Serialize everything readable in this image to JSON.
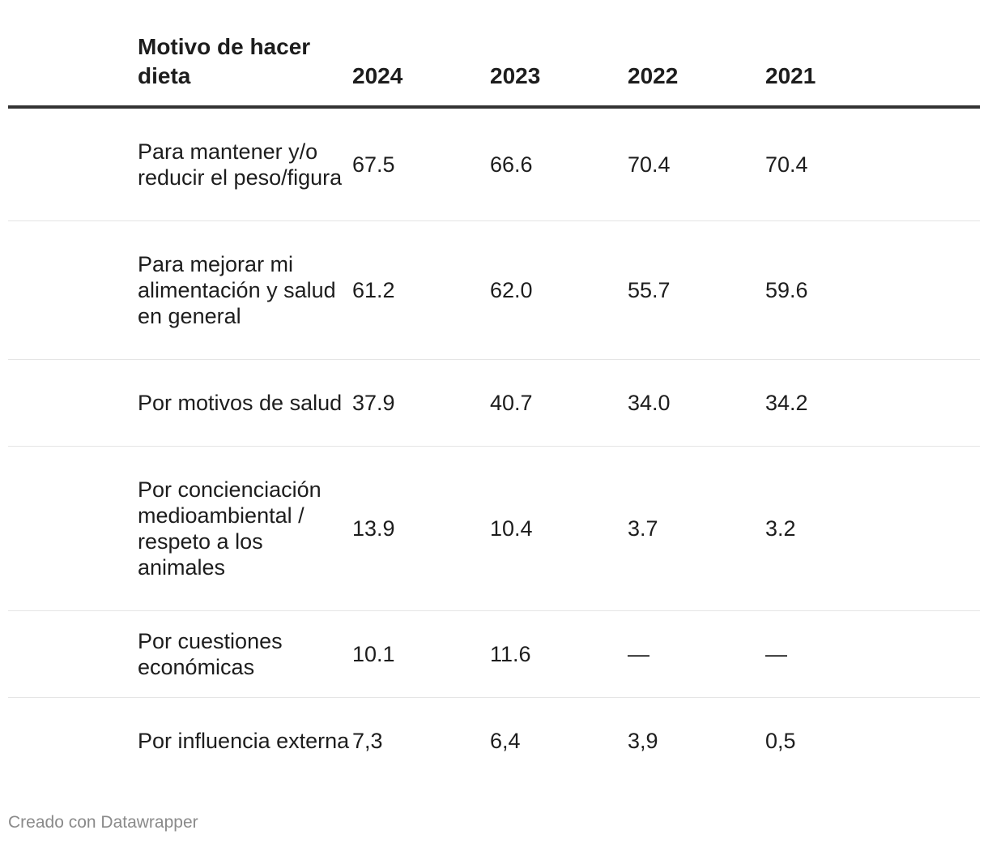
{
  "chart_data": {
    "type": "table",
    "columns": [
      "Motivo de hacer dieta",
      "2024",
      "2023",
      "2022",
      "2021"
    ],
    "rows": [
      {
        "label": "Para mantener y/o reducir el peso/figura",
        "values": [
          "67.5",
          "66.6",
          "70.4",
          "70.4"
        ]
      },
      {
        "label": "Para mejorar mi alimentación y salud en general",
        "values": [
          "61.2",
          "62.0",
          "55.7",
          "59.6"
        ]
      },
      {
        "label": "Por motivos de salud",
        "values": [
          "37.9",
          "40.7",
          "34.0",
          "34.2"
        ]
      },
      {
        "label": "Por concienciación medioambiental / respeto a los animales",
        "values": [
          "13.9",
          "10.4",
          "3.7",
          "3.2"
        ]
      },
      {
        "label": "Por cuestiones económicas",
        "values": [
          "10.1",
          "11.6",
          "—",
          "—"
        ]
      },
      {
        "label": "Por influencia externa",
        "values": [
          "7,3",
          "6,4",
          "3,9",
          "0,5"
        ]
      }
    ]
  },
  "footer": "Creado con Datawrapper",
  "colors": {
    "header_rule": "#333333",
    "row_divider": "#e5e5e5",
    "footer_text": "#8a8a8a"
  }
}
